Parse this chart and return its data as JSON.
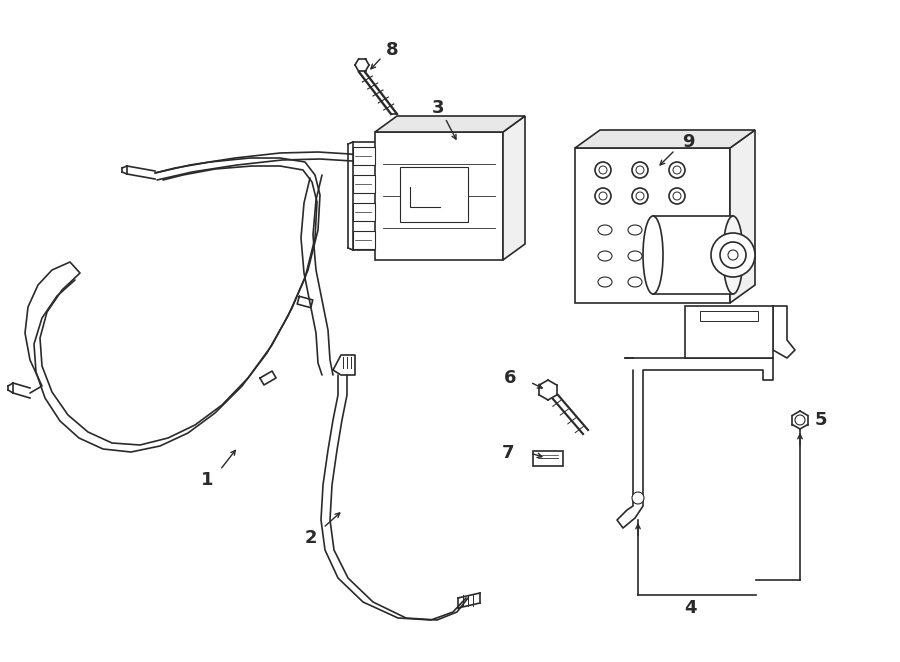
{
  "background_color": "#ffffff",
  "line_color": "#2a2a2a",
  "figure_width": 9.0,
  "figure_height": 6.62,
  "dpi": 100
}
